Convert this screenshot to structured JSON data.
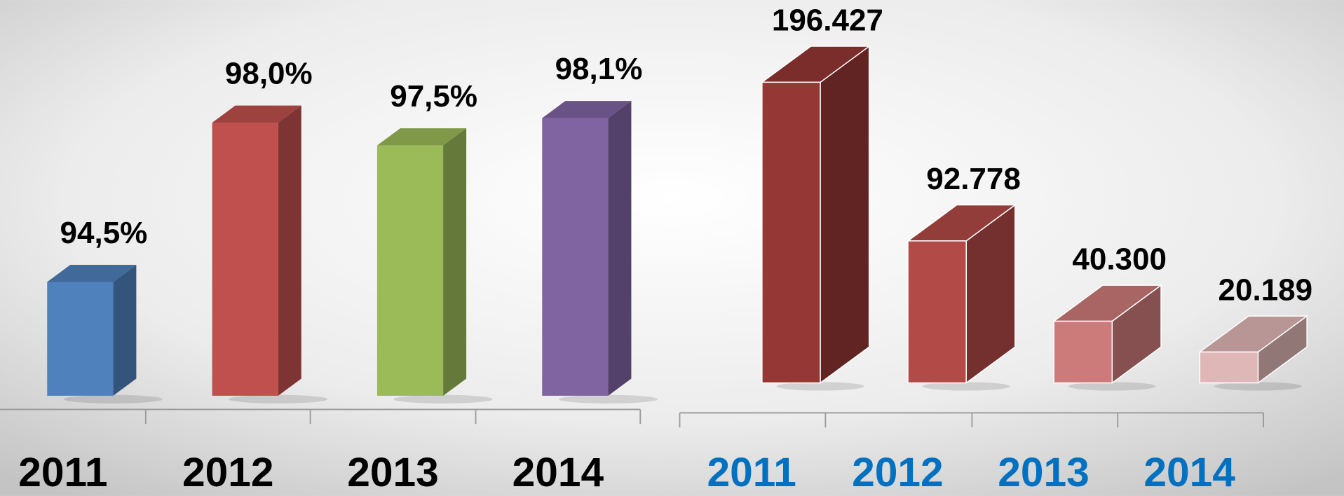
{
  "chart_data": [
    {
      "type": "bar",
      "categories": [
        "2011",
        "2012",
        "2013",
        "2014"
      ],
      "values": [
        94.5,
        98.0,
        97.5,
        98.1
      ],
      "value_labels": [
        "94,5%",
        "98,0%",
        "97,5%",
        "98,1%"
      ],
      "colors": [
        "#4f81bd",
        "#c0504d",
        "#9bbb59",
        "#8064a2"
      ],
      "ylim": [
        92,
        99
      ]
    },
    {
      "type": "bar",
      "categories": [
        "2011",
        "2012",
        "2013",
        "2014"
      ],
      "values": [
        196427,
        92778,
        40300,
        20189
      ],
      "value_labels": [
        "196.427",
        "92.778",
        "40.300",
        "20.189"
      ],
      "colors": [
        "#953735",
        "#b24a47",
        "#cd7b7a",
        "#e0b7b7"
      ],
      "ylim": [
        0,
        200000
      ]
    }
  ]
}
